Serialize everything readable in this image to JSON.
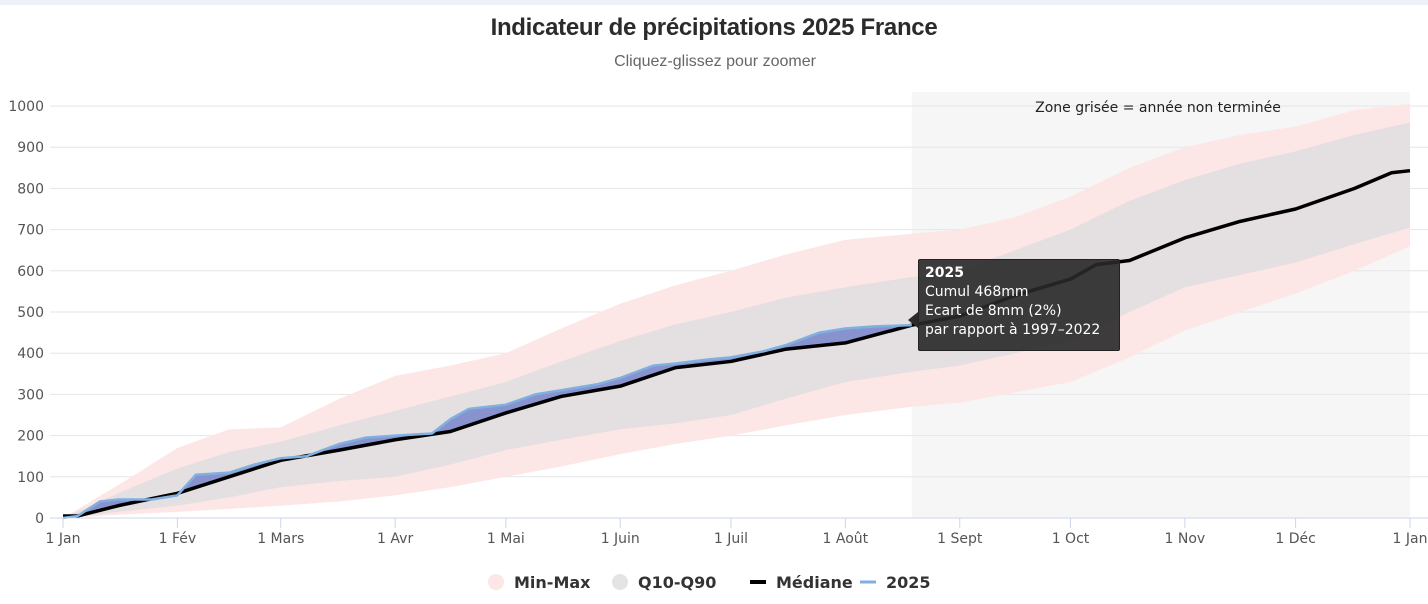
{
  "chart_data": {
    "type": "area",
    "title": "Indicateur de précipitations 2025 France",
    "subtitle": "Cliquez-glissez pour zoomer",
    "xlabel": "",
    "ylabel": "",
    "ylim": [
      0,
      1000
    ],
    "xlim_days": [
      0,
      365
    ],
    "yticks": [
      0,
      100,
      200,
      300,
      400,
      500,
      600,
      700,
      800,
      900,
      1000
    ],
    "xticks": [
      {
        "day": 0,
        "label": "1 Jan"
      },
      {
        "day": 31,
        "label": "1 Fév"
      },
      {
        "day": 59,
        "label": "1 Mars"
      },
      {
        "day": 90,
        "label": "1 Avr"
      },
      {
        "day": 120,
        "label": "1 Mai"
      },
      {
        "day": 151,
        "label": "1 Juin"
      },
      {
        "day": 181,
        "label": "1 Juil"
      },
      {
        "day": 212,
        "label": "1 Août"
      },
      {
        "day": 243,
        "label": "1 Sept"
      },
      {
        "day": 273,
        "label": "1 Oct"
      },
      {
        "day": 304,
        "label": "1 Nov"
      },
      {
        "day": 334,
        "label": "1 Déc"
      },
      {
        "day": 365,
        "label": "1 Jan"
      }
    ],
    "grid": true,
    "legend_position": "bottom-center",
    "annotation": {
      "text": "Zone grisée = année non terminée",
      "shaded_from_day": 230,
      "shaded_to_day": 365
    },
    "series": [
      {
        "name": "Min-Max",
        "kind": "band",
        "color": "#fde6e6",
        "x": [
          0,
          15,
          31,
          45,
          59,
          75,
          90,
          105,
          120,
          135,
          151,
          166,
          181,
          196,
          212,
          230,
          243,
          258,
          273,
          289,
          304,
          319,
          334,
          350,
          365
        ],
        "low": [
          0,
          8,
          15,
          22,
          30,
          40,
          55,
          75,
          100,
          125,
          155,
          180,
          200,
          225,
          250,
          270,
          280,
          305,
          330,
          390,
          455,
          500,
          545,
          600,
          660
        ],
        "high": [
          0,
          80,
          170,
          215,
          220,
          290,
          345,
          370,
          400,
          460,
          520,
          565,
          600,
          640,
          675,
          690,
          700,
          730,
          780,
          850,
          900,
          930,
          950,
          990,
          1005
        ]
      },
      {
        "name": "Q10-Q90",
        "kind": "band",
        "color": "#e4dfe0",
        "x": [
          0,
          15,
          31,
          45,
          59,
          75,
          90,
          105,
          120,
          135,
          151,
          166,
          181,
          196,
          212,
          230,
          243,
          258,
          273,
          289,
          304,
          319,
          334,
          350,
          365
        ],
        "low": [
          0,
          15,
          30,
          50,
          75,
          90,
          100,
          130,
          165,
          190,
          215,
          230,
          250,
          290,
          330,
          355,
          370,
          400,
          430,
          500,
          560,
          590,
          620,
          665,
          705
        ],
        "high": [
          0,
          60,
          120,
          160,
          185,
          225,
          260,
          295,
          330,
          380,
          430,
          470,
          500,
          535,
          560,
          585,
          600,
          650,
          700,
          770,
          820,
          860,
          890,
          930,
          960
        ]
      },
      {
        "name": "Médiane",
        "kind": "line",
        "color": "#000000",
        "x": [
          0,
          4,
          15,
          31,
          45,
          59,
          75,
          90,
          105,
          120,
          135,
          151,
          166,
          181,
          196,
          212,
          230,
          243,
          258,
          273,
          280,
          289,
          304,
          319,
          334,
          350,
          360,
          365
        ],
        "y": [
          5,
          5,
          30,
          60,
          100,
          140,
          165,
          190,
          210,
          255,
          295,
          320,
          365,
          380,
          410,
          425,
          468,
          490,
          540,
          580,
          615,
          625,
          680,
          720,
          750,
          800,
          838,
          843
        ]
      },
      {
        "name": "2025",
        "kind": "line",
        "color": "#7fb0e0",
        "fill_color": "#6a78c8",
        "x": [
          0,
          4,
          10,
          15,
          24,
          31,
          36,
          45,
          52,
          59,
          66,
          75,
          82,
          90,
          100,
          105,
          110,
          120,
          128,
          135,
          145,
          151,
          160,
          166,
          175,
          181,
          190,
          196,
          205,
          212,
          220,
          230
        ],
        "y": [
          0,
          5,
          40,
          45,
          45,
          55,
          105,
          110,
          130,
          145,
          150,
          180,
          195,
          200,
          205,
          240,
          265,
          275,
          300,
          310,
          325,
          340,
          370,
          375,
          385,
          390,
          405,
          420,
          450,
          460,
          465,
          468
        ]
      }
    ],
    "tooltip": {
      "title": "2025",
      "line1": "Cumul 468mm",
      "line2": "Ecart de 8mm (2%)",
      "line3": "par rapport à 1997–2022"
    },
    "legend": [
      {
        "label": "Min-Max",
        "symbol": "circle",
        "color": "#fde6e6"
      },
      {
        "label": "Q10-Q90",
        "symbol": "circle",
        "color": "#e4e4e4"
      },
      {
        "label": "Médiane",
        "symbol": "line",
        "color": "#000000"
      },
      {
        "label": "2025",
        "symbol": "line",
        "color": "#7fb0e0"
      }
    ]
  }
}
